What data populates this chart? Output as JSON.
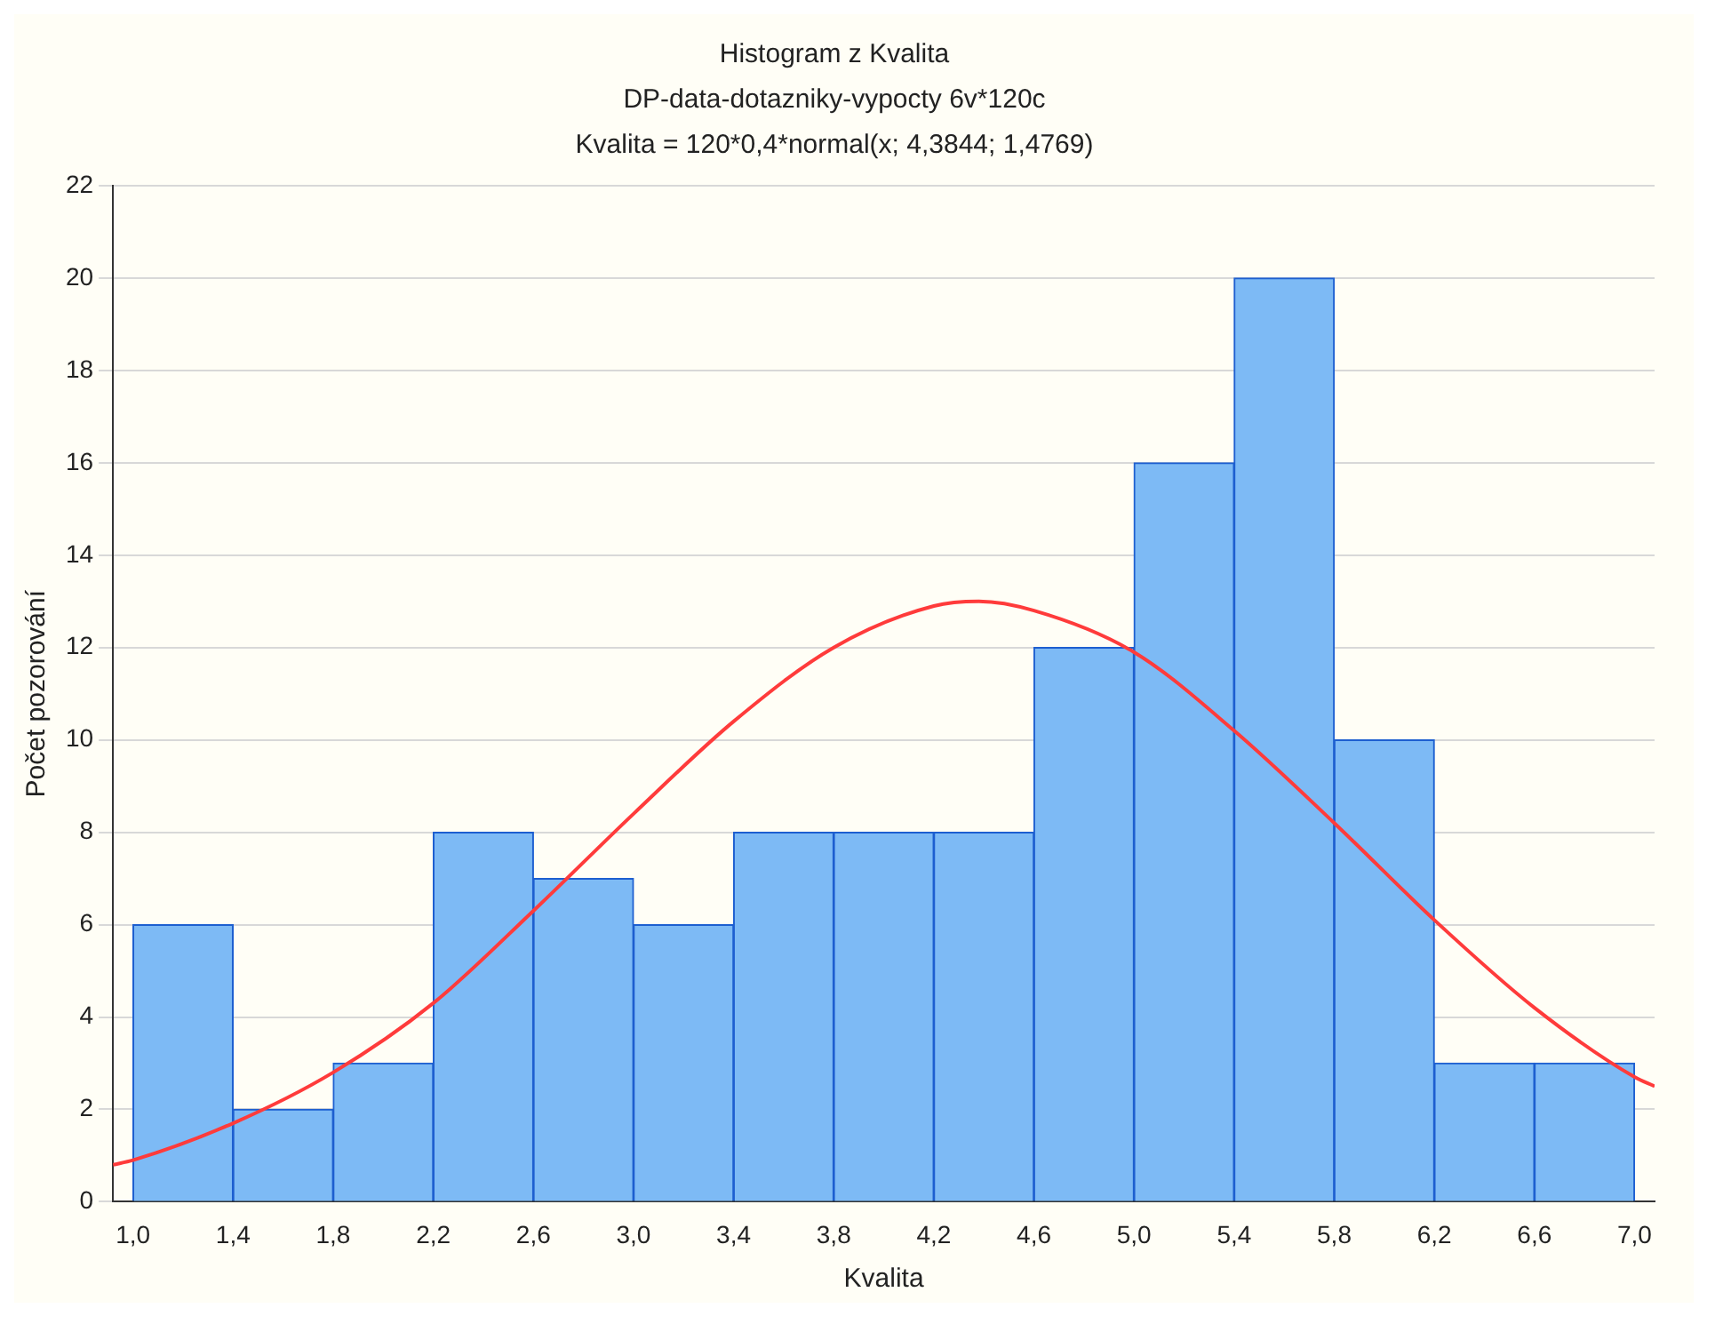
{
  "chart_data": {
    "type": "histogram",
    "title": "Histogram z Kvalita",
    "subtitle": "DP-data-dotazniky-vypocty 6v*120c",
    "annotations": [
      "Kvalita = 120*0,4*normal(x; 4,3844; 1,4769)"
    ],
    "xlabel": "Kvalita",
    "ylabel": "Počet pozorování",
    "bins": [
      1.0,
      1.4,
      1.8,
      2.2,
      2.6,
      3.0,
      3.4,
      3.8,
      4.2,
      4.6,
      5.0,
      5.4,
      5.8,
      6.2,
      6.6,
      7.0
    ],
    "values": [
      6,
      2,
      3,
      8,
      7,
      6,
      8,
      8,
      8,
      12,
      16,
      20,
      10,
      3,
      3
    ],
    "color": "#7dbaf5",
    "series": [
      {
        "type": "line",
        "color": "#ff3b3b",
        "x": [
          0.92,
          1.0,
          1.4,
          1.8,
          2.2,
          2.6,
          3.0,
          3.4,
          3.8,
          4.2,
          4.38,
          4.6,
          5.0,
          5.4,
          5.8,
          6.2,
          6.6,
          7.0,
          7.08
        ],
        "values": [
          0.8,
          0.9,
          1.7,
          2.8,
          4.3,
          6.3,
          8.4,
          10.4,
          12.0,
          12.9,
          13.0,
          12.8,
          11.9,
          10.2,
          8.2,
          6.1,
          4.2,
          2.7,
          2.5
        ]
      }
    ],
    "xlim": [
      0.92,
      7.08
    ],
    "xticks": [
      {
        "value": 1.0,
        "label": "1,0"
      },
      {
        "value": 1.4,
        "label": "1,4"
      },
      {
        "value": 1.8,
        "label": "1,8"
      },
      {
        "value": 2.2,
        "label": "2,2"
      },
      {
        "value": 2.6,
        "label": "2,6"
      },
      {
        "value": 3.0,
        "label": "3,0"
      },
      {
        "value": 3.4,
        "label": "3,4"
      },
      {
        "value": 3.8,
        "label": "3,8"
      },
      {
        "value": 4.2,
        "label": "4,2"
      },
      {
        "value": 4.6,
        "label": "4,6"
      },
      {
        "value": 5.0,
        "label": "5,0"
      },
      {
        "value": 5.4,
        "label": "5,4"
      },
      {
        "value": 5.8,
        "label": "5,8"
      },
      {
        "value": 6.2,
        "label": "6,2"
      },
      {
        "value": 6.6,
        "label": "6,6"
      },
      {
        "value": 7.0,
        "label": "7,0"
      }
    ],
    "ylim": [
      0,
      22
    ],
    "yticks": [
      0,
      2,
      4,
      6,
      8,
      10,
      12,
      14,
      16,
      18,
      20,
      22
    ],
    "grid": "y",
    "legend": false,
    "line_style": "solid",
    "marker": "none"
  }
}
